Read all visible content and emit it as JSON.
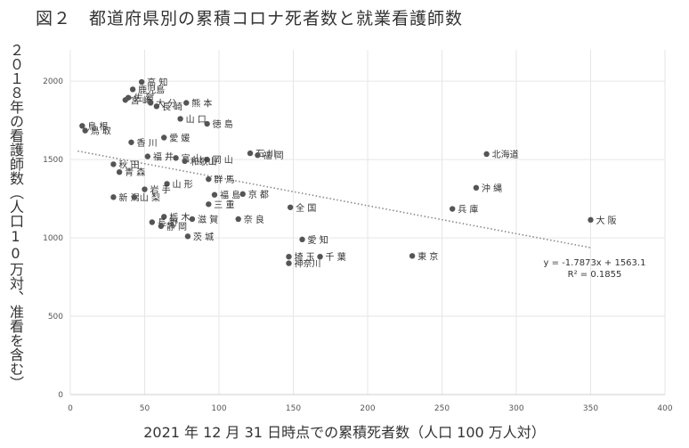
{
  "chart_data": {
    "type": "scatter",
    "title": "図２　都道府県別の累積コロナ死者数と就業看護師数",
    "xlabel": "2021 年 12 月 31 日時点での累積死者数（人口 100 万人対）",
    "ylabel": "２０１８年の看護師数（人口10万対、准看を含む）",
    "xlim": [
      0,
      400
    ],
    "ylim": [
      0,
      2200
    ],
    "xticks": [
      0,
      50,
      100,
      150,
      200,
      250,
      300,
      350,
      400
    ],
    "yticks": [
      0,
      500,
      1000,
      1500,
      2000
    ],
    "grid": true,
    "points": [
      {
        "label": "高 知",
        "x": 48,
        "y": 1995
      },
      {
        "label": "鹿児島",
        "x": 42,
        "y": 1948
      },
      {
        "label": "佐 賀",
        "x": 39,
        "y": 1895
      },
      {
        "label": "宮 崎",
        "x": 37,
        "y": 1880
      },
      {
        "label": "大 分",
        "x": 54,
        "y": 1862
      },
      {
        "label": "熊 本",
        "x": 78,
        "y": 1862
      },
      {
        "label": "長 崎",
        "x": 58,
        "y": 1840
      },
      {
        "label": "山 口",
        "x": 74,
        "y": 1760
      },
      {
        "label": "徳 島",
        "x": 92,
        "y": 1728
      },
      {
        "label": "鳥 根",
        "x": 8,
        "y": 1715
      },
      {
        "label": "鳥 取",
        "x": 10,
        "y": 1685
      },
      {
        "label": "愛 媛",
        "x": 63,
        "y": 1640
      },
      {
        "label": "香 川",
        "x": 41,
        "y": 1610
      },
      {
        "label": "石 川",
        "x": 121,
        "y": 1540
      },
      {
        "label": "福 岡",
        "x": 126,
        "y": 1528
      },
      {
        "label": "福 井",
        "x": 52,
        "y": 1520
      },
      {
        "label": "富 山",
        "x": 71,
        "y": 1510
      },
      {
        "label": "岡 山",
        "x": 92,
        "y": 1500
      },
      {
        "label": "和歌山",
        "x": 77,
        "y": 1490
      },
      {
        "label": "秋 田",
        "x": 29,
        "y": 1470
      },
      {
        "label": "群 馬",
        "x": 93,
        "y": 1375
      },
      {
        "label": "青 森",
        "x": 33,
        "y": 1420
      },
      {
        "label": "山 形",
        "x": 65,
        "y": 1345
      },
      {
        "label": "岩 手",
        "x": 50,
        "y": 1310
      },
      {
        "label": "福 島",
        "x": 97,
        "y": 1275
      },
      {
        "label": "京 都",
        "x": 116,
        "y": 1280
      },
      {
        "label": "新 潟",
        "x": 29,
        "y": 1260
      },
      {
        "label": "山 梨",
        "x": 43,
        "y": 1260
      },
      {
        "label": "三 重",
        "x": 93,
        "y": 1215
      },
      {
        "label": "全 国",
        "x": 148,
        "y": 1195
      },
      {
        "label": "栃 木",
        "x": 63,
        "y": 1135
      },
      {
        "label": "滋 賀",
        "x": 82,
        "y": 1120
      },
      {
        "label": "奈 良",
        "x": 113,
        "y": 1120
      },
      {
        "label": "長 野",
        "x": 55,
        "y": 1100
      },
      {
        "label": "静 岡",
        "x": 61,
        "y": 1075
      },
      {
        "label": "茨 城",
        "x": 79,
        "y": 1010
      },
      {
        "label": "北海道",
        "x": 280,
        "y": 1535
      },
      {
        "label": "沖 縄",
        "x": 273,
        "y": 1320
      },
      {
        "label": "兵 庫",
        "x": 257,
        "y": 1185
      },
      {
        "label": "大 阪",
        "x": 350,
        "y": 1115
      },
      {
        "label": "愛 知",
        "x": 156,
        "y": 990
      },
      {
        "label": "埼 玉",
        "x": 147,
        "y": 880
      },
      {
        "label": "千 葉",
        "x": 168,
        "y": 880
      },
      {
        "label": "神奈川",
        "x": 147,
        "y": 838
      },
      {
        "label": "東 京",
        "x": 230,
        "y": 885
      }
    ],
    "trendline": {
      "type": "linear",
      "slope": -1.7873,
      "intercept": 1563.1,
      "equation": "y = -1.7873x + 1563.1",
      "r2": "R² = 0.1855",
      "x_range": [
        5,
        350
      ]
    },
    "colors": {
      "point": "#555555",
      "trend": "#8a8a8a",
      "grid": "#e6e6e6",
      "text": "#333333"
    }
  }
}
